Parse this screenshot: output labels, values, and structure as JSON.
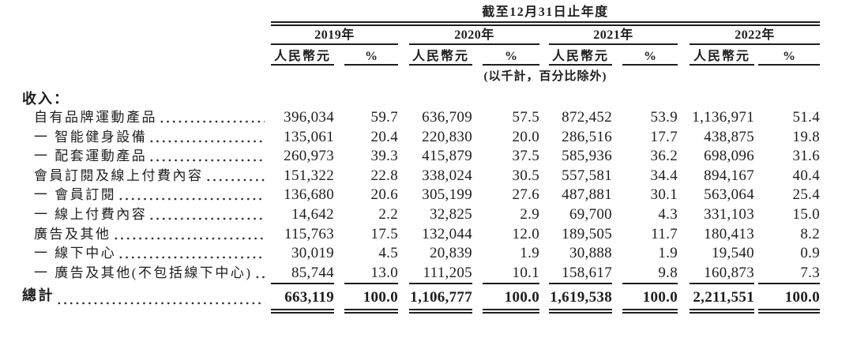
{
  "table": {
    "title": "截至12月31日止年度",
    "unit_note": "(以千計，百分比除外)",
    "columns": {
      "years": [
        "2019年",
        "2020年",
        "2021年",
        "2022年"
      ],
      "rmb_label": "人民幣元",
      "pct_label": "%"
    },
    "section_label": "收入：",
    "rows": [
      {
        "label": "自有品牌運動產品",
        "values": [
          "396,034",
          "59.7",
          "636,709",
          "57.5",
          "872,452",
          "53.9",
          "1,136,971",
          "51.4"
        ]
      },
      {
        "label": "一 智能健身設備",
        "values": [
          "135,061",
          "20.4",
          "220,830",
          "20.0",
          "286,516",
          "17.7",
          "438,875",
          "19.8"
        ]
      },
      {
        "label": "一 配套運動產品",
        "values": [
          "260,973",
          "39.3",
          "415,879",
          "37.5",
          "585,936",
          "36.2",
          "698,096",
          "31.6"
        ]
      },
      {
        "label": "會員訂閱及線上付費內容",
        "values": [
          "151,322",
          "22.8",
          "338,024",
          "30.5",
          "557,581",
          "34.4",
          "894,167",
          "40.4"
        ]
      },
      {
        "label": "一 會員訂閱",
        "values": [
          "136,680",
          "20.6",
          "305,199",
          "27.6",
          "487,881",
          "30.1",
          "563,064",
          "25.4"
        ]
      },
      {
        "label": "一 線上付費內容",
        "values": [
          "14,642",
          "2.2",
          "32,825",
          "2.9",
          "69,700",
          "4.3",
          "331,103",
          "15.0"
        ]
      },
      {
        "label": "廣告及其他",
        "values": [
          "115,763",
          "17.5",
          "132,044",
          "12.0",
          "189,505",
          "11.7",
          "180,413",
          "8.2"
        ]
      },
      {
        "label": "一 線下中心",
        "values": [
          "30,019",
          "4.5",
          "20,839",
          "1.9",
          "30,888",
          "1.9",
          "19,540",
          "0.9"
        ]
      },
      {
        "label": "一 廣告及其他(不包括線下中心)",
        "values": [
          "85,744",
          "13.0",
          "111,205",
          "10.1",
          "158,617",
          "9.8",
          "160,873",
          "7.3"
        ]
      }
    ],
    "total": {
      "label": "總計",
      "values": [
        "663,119",
        "100.0",
        "1,106,777",
        "100.0",
        "1,619,538",
        "100.0",
        "2,211,551",
        "100.0"
      ]
    }
  },
  "colors": {
    "text": "#1e1e1e",
    "rule": "#1e1e1e",
    "background": "#ffffff"
  }
}
